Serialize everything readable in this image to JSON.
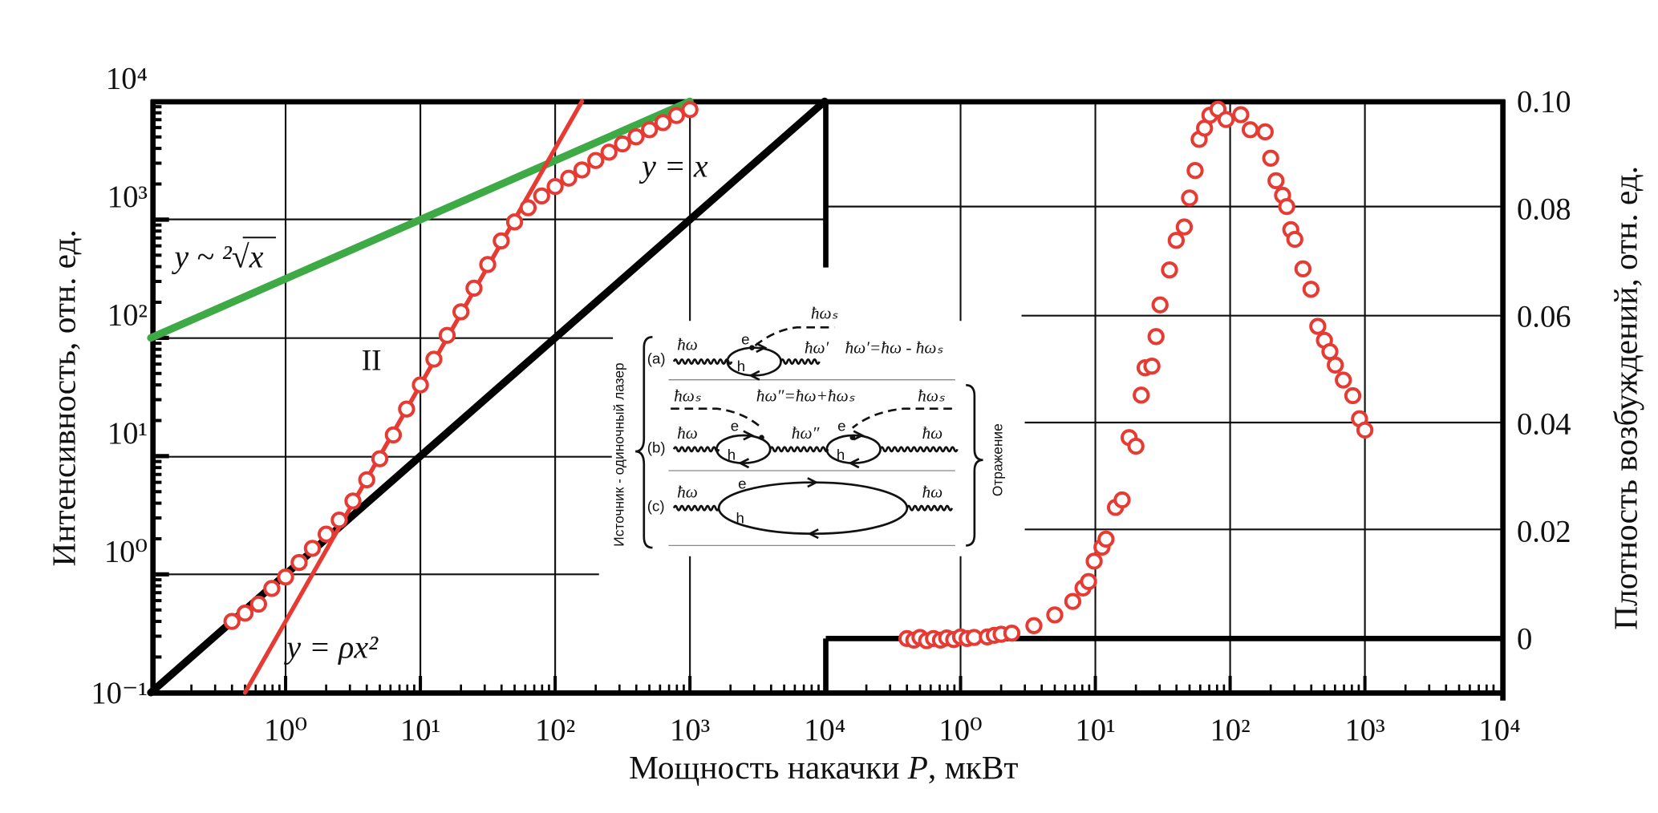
{
  "colors": {
    "data": "#e63a32",
    "green": "#3daa45",
    "black": "#000000"
  },
  "xlabel": {
    "main": "Мощность накачки ",
    "var": "P",
    "unit": ", мкВт"
  },
  "chart_data": [
    {
      "type": "scatter",
      "panel": "left",
      "xscale": "log",
      "yscale": "log",
      "xlim": [
        0.1,
        10000
      ],
      "ylim": [
        0.1,
        10000
      ],
      "ylabel": "Интенсивность, отн. ед.",
      "xticks": [
        "10⁰",
        "10¹",
        "10²",
        "10³",
        "10⁴"
      ],
      "xtick_values": [
        1,
        10,
        100,
        1000,
        10000
      ],
      "yticks": [
        "10⁻¹",
        "10⁰",
        "10¹",
        "10²",
        "10³",
        "10⁴"
      ],
      "ytick_values": [
        0.1,
        1,
        10,
        100,
        1000,
        10000
      ],
      "grid": true,
      "series": [
        {
          "name": "measured intensity",
          "marker": "open-circle",
          "x": [
            0.4,
            0.5,
            0.63,
            0.79,
            1.0,
            1.26,
            1.58,
            2.0,
            2.5,
            3.16,
            4.0,
            5.0,
            6.3,
            7.9,
            10,
            12.6,
            15.8,
            20,
            25,
            31.6,
            39.8,
            50,
            63,
            79.4,
            100,
            126,
            158,
            200,
            251,
            316,
            398,
            501,
            631,
            794,
            1000
          ],
          "y": [
            0.4,
            0.47,
            0.56,
            0.76,
            0.95,
            1.26,
            1.66,
            2.19,
            2.88,
            4.17,
            6.3,
            9.5,
            15.1,
            25,
            40,
            66,
            105,
            166,
            263,
            417,
            661,
            955,
            1259,
            1585,
            1905,
            2239,
            2630,
            3162,
            3715,
            4365,
            5012,
            5754,
            6607,
            7586,
            8511
          ]
        }
      ],
      "lines": [
        {
          "name": "y = x",
          "exponent": 1,
          "coef": 1,
          "xrange": [
            0.1,
            10000
          ]
        },
        {
          "name": "y ~ sqrt(x)",
          "exponent": 0.5,
          "coef": 316,
          "xrange": [
            0.1,
            1000
          ]
        },
        {
          "name": "y = ρx²",
          "exponent": 2,
          "coef": 0.4,
          "xrange": [
            0.5,
            158
          ]
        }
      ],
      "annotations": {
        "yx": "y = x",
        "sqrt": "y ~ ²√x",
        "region": "II",
        "quad": "y = ρx²"
      }
    },
    {
      "type": "scatter",
      "panel": "right",
      "xscale": "log",
      "yscale": "linear",
      "xlim": [
        0.1,
        10000
      ],
      "ylim": [
        -0.01,
        0.1
      ],
      "ylabel": "Плотность возбуждений, отн. ед.",
      "xticks": [
        "10⁰",
        "10¹",
        "10²",
        "10³",
        "10⁴"
      ],
      "xtick_values": [
        1,
        10,
        100,
        1000,
        10000
      ],
      "yticks": [
        "0",
        "0.02",
        "0.04",
        "0.06",
        "0.08",
        "0.10"
      ],
      "ytick_values": [
        0,
        0.02,
        0.04,
        0.06,
        0.08,
        0.1
      ],
      "grid": true,
      "series": [
        {
          "name": "excitation density",
          "marker": "open-circle",
          "x": [
            0.4,
            0.45,
            0.5,
            0.56,
            0.63,
            0.71,
            0.79,
            0.89,
            1.0,
            1.12,
            1.26,
            1.58,
            1.78,
            2.0,
            2.4,
            3.5,
            5.0,
            6.8,
            8.1,
            8.9,
            9.8,
            11.2,
            12,
            14.1,
            15.8,
            17.8,
            20,
            21.9,
            23.4,
            26.3,
            28.2,
            30.2,
            35.5,
            39.8,
            45.7,
            50,
            55,
            58.9,
            64.6,
            70.8,
            81.3,
            93.3,
            120,
            141,
            182,
            200,
            219,
            245,
            263,
            282,
            302,
            347,
            398,
            447,
            501,
            550,
            603,
            692,
            813,
            912,
            1000
          ],
          "y": [
            0.0,
            -0.0003,
            0.0002,
            -0.0004,
            0.0,
            -0.0003,
            0.0001,
            -0.0002,
            0.0003,
            0.0,
            0.0002,
            0.0003,
            0.0006,
            0.0008,
            0.001,
            0.0024,
            0.0044,
            0.0069,
            0.0094,
            0.0106,
            0.0144,
            0.017,
            0.0185,
            0.0244,
            0.0258,
            0.0374,
            0.0358,
            0.0453,
            0.0504,
            0.0507,
            0.0562,
            0.0621,
            0.0686,
            0.0741,
            0.0766,
            0.082,
            0.0871,
            0.0929,
            0.095,
            0.0974,
            0.0985,
            0.0966,
            0.0975,
            0.0947,
            0.0943,
            0.0894,
            0.0852,
            0.0825,
            0.0804,
            0.0761,
            0.0743,
            0.0688,
            0.065,
            0.0581,
            0.0555,
            0.0534,
            0.0509,
            0.0481,
            0.0452,
            0.0409,
            0.0388
          ]
        }
      ]
    }
  ],
  "inset": {
    "left_brace_label": "Источник - одиночный лазер",
    "right_brace_label": "Отражение",
    "row_a": {
      "tag": "(a)",
      "in": "ħω",
      "e": "e",
      "h": "h",
      "scattered": "ħωₛ",
      "out": "ħω′",
      "formula": "ħω′=ħω - ħωₛ"
    },
    "row_b": {
      "tag": "(b)",
      "in": "ħω",
      "e1": "e",
      "h1": "h",
      "mid": "ħω″",
      "e2": "e",
      "h2": "h",
      "out": "ħω",
      "s_left": "ħωₛ",
      "s_right": "ħωₛ",
      "formula": "ħω″=ħω+ħωₛ"
    },
    "row_c": {
      "tag": "(c)",
      "in": "ħω",
      "e": "e",
      "h": "h",
      "out": "ħω"
    }
  }
}
